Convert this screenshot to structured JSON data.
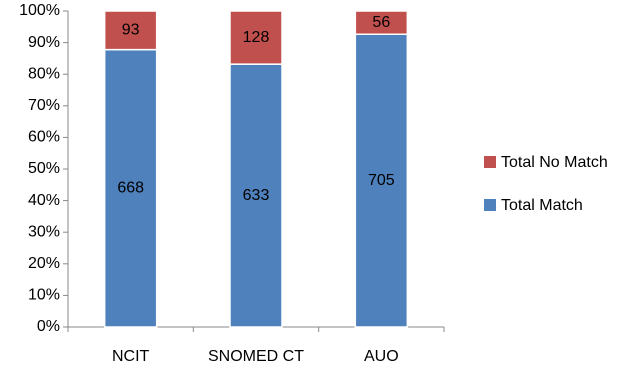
{
  "chart_data": {
    "type": "stacked_percent_bar",
    "categories": [
      "NCIT",
      "SNOMED CT",
      "AUO"
    ],
    "series": [
      {
        "name": "Total Match",
        "color": "#4f81bd",
        "values": [
          668,
          633,
          705
        ]
      },
      {
        "name": "Total No Match",
        "color": "#c0504d",
        "values": [
          93,
          128,
          56
        ]
      }
    ],
    "ylim": [
      0,
      100
    ],
    "yticks": [
      {
        "value": 0,
        "label": "0%"
      },
      {
        "value": 10,
        "label": "10%"
      },
      {
        "value": 20,
        "label": "20%"
      },
      {
        "value": 30,
        "label": "30%"
      },
      {
        "value": 40,
        "label": "40%"
      },
      {
        "value": 50,
        "label": "50%"
      },
      {
        "value": 60,
        "label": "60%"
      },
      {
        "value": 70,
        "label": "70%"
      },
      {
        "value": 80,
        "label": "80%"
      },
      {
        "value": 90,
        "label": "90%"
      },
      {
        "value": 100,
        "label": "100%"
      }
    ],
    "legend": "right"
  }
}
